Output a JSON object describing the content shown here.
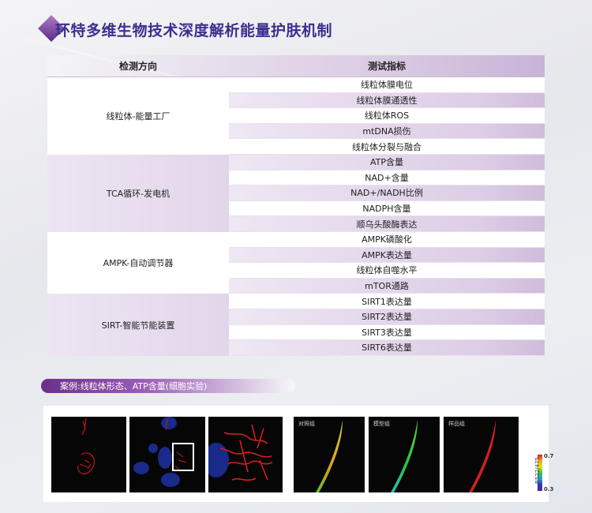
{
  "title": "环特多维生物技术深度解析能量护肤机制",
  "table": {
    "headers": [
      "检测方向",
      "测试指标"
    ],
    "groups": [
      {
        "name": "线粒体-能量工厂",
        "items": [
          "线粒体膜电位",
          "线粒体膜通透性",
          "线粒体ROS",
          "mtDNA损伤",
          "线粒体分裂与融合"
        ]
      },
      {
        "name": "TCA循环-发电机",
        "items": [
          "ATP含量",
          "NAD+含量",
          "NAD+/NADH比例",
          "NADPH含量",
          "顺乌头酸酶表达"
        ]
      },
      {
        "name": "AMPK-自动调节器",
        "items": [
          "AMPK磷酸化",
          "AMPK表达量",
          "线粒体自噬水平",
          "mTOR通路"
        ]
      },
      {
        "name": "SIRT-智能节能装置",
        "items": [
          "SIRT1表达量",
          "SIRT2表达量",
          "SIRT3表达量",
          "SIRT6表达量"
        ]
      }
    ]
  },
  "case": {
    "caption": "案例:线粒体形态、ATP含量(细胞实验)",
    "groups": [
      "对照组",
      "模型组",
      "样品组"
    ],
    "colorbar": {
      "max": "0.7",
      "min": "0.3",
      "label": "R522/475"
    }
  }
}
